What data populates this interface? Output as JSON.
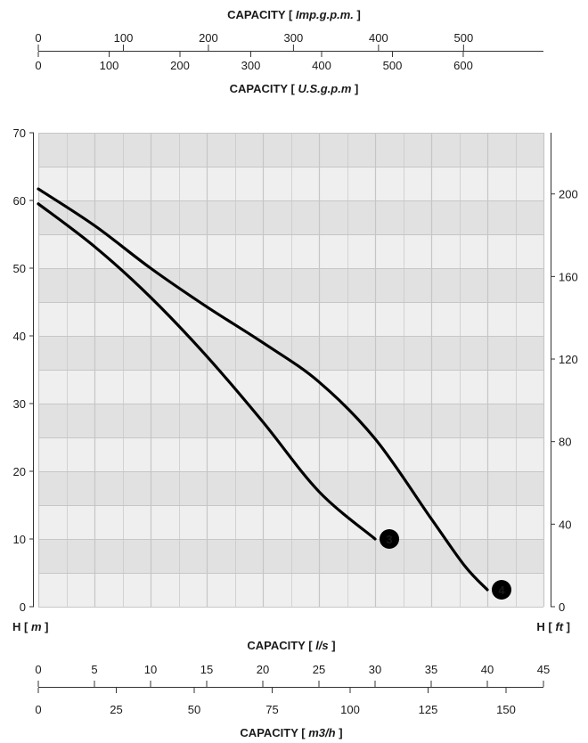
{
  "chart_data": {
    "type": "line",
    "top_axis_imp": {
      "title": "CAPACITY",
      "unit": "Imp.g.p.m.",
      "ticks": [
        0,
        100,
        200,
        300,
        400,
        500
      ]
    },
    "top_axis_us": {
      "title": "CAPACITY",
      "unit": "U.S.g.p.m",
      "ticks": [
        0,
        100,
        200,
        300,
        400,
        500,
        600
      ]
    },
    "bottom_axis_ls": {
      "title": "CAPACITY",
      "unit": "l/s",
      "ticks": [
        0,
        5,
        10,
        15,
        20,
        25,
        30,
        35,
        40,
        45
      ],
      "xlim": [
        0,
        45
      ]
    },
    "bottom_axis_m3h": {
      "title": "CAPACITY",
      "unit": "m3/h",
      "ticks": [
        0,
        25,
        50,
        75,
        100,
        125,
        150
      ]
    },
    "left_axis": {
      "label": "H",
      "unit": "m",
      "ticks": [
        0,
        10,
        20,
        30,
        40,
        50,
        60,
        70
      ],
      "ylim": [
        0,
        70
      ]
    },
    "right_axis": {
      "label": "H",
      "unit": "ft",
      "ticks": [
        0,
        40,
        80,
        120,
        160,
        200
      ]
    },
    "grid": true,
    "series": [
      {
        "name": "3",
        "x": [
          0,
          5,
          10,
          15,
          20,
          25,
          30
        ],
        "y": [
          59.5,
          53.2,
          45.7,
          37.0,
          27.3,
          17.0,
          10.0
        ]
      },
      {
        "name": "4",
        "x": [
          0,
          5,
          10,
          15,
          20,
          25,
          30,
          35,
          38,
          40
        ],
        "y": [
          61.7,
          56.3,
          50.0,
          44.3,
          39.0,
          33.2,
          24.8,
          13.0,
          6.0,
          2.5
        ]
      }
    ]
  },
  "colors": {
    "plot_band_light": "#efefef",
    "plot_band_dark": "#e1e1e1",
    "grid_line": "#c6c6c6",
    "curve": "#000000",
    "marker_text": "#ffffff"
  }
}
